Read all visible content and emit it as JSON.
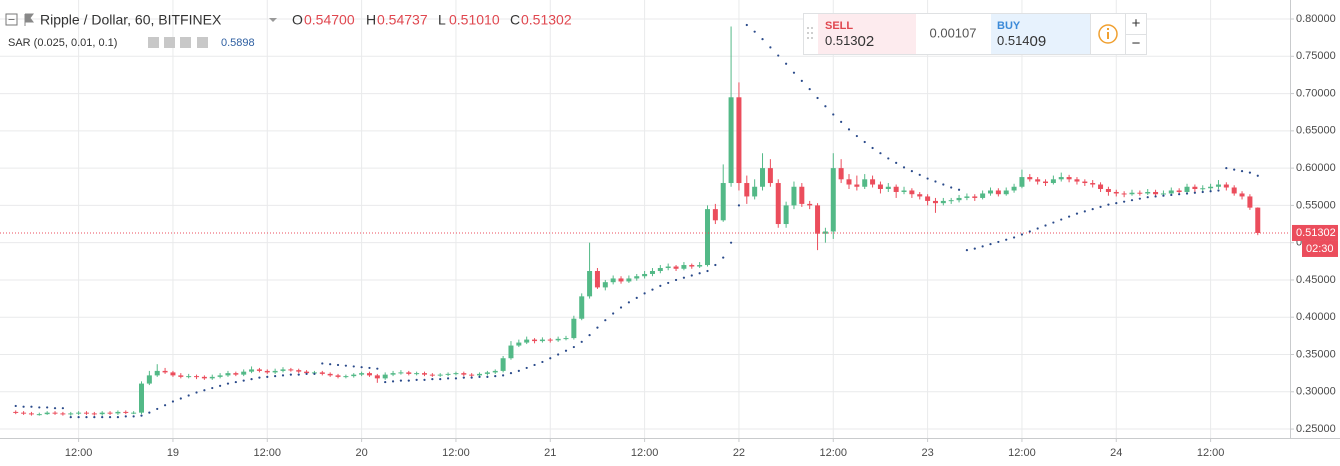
{
  "legend": {
    "symbol": "Ripple / Dollar, 60, BITFINEX",
    "o_key": "O",
    "o": "0.54700",
    "h_key": "H",
    "h": "0.54737",
    "l_key": "L",
    "l": "0.51010",
    "c_key": "C",
    "c": "0.51302",
    "indicator": "SAR (0.025, 0.01, 0.1)"
  },
  "trade": {
    "sell_label": "SELL",
    "sell_small": "0.513",
    "sell_big": "02",
    "spread": "0.00107",
    "buy_label": "BUY",
    "buy_small": "0.514",
    "buy_big": "09",
    "plus": "+",
    "minus": "−"
  },
  "chart_data": {
    "type": "candlestick",
    "up_color": "#53b987",
    "down_color": "#eb4d5c",
    "sar_color": "#2a4a8a",
    "grid": true,
    "xlim": [
      2,
      166.1
    ],
    "ylim": [
      0.238,
      0.8255
    ],
    "xticks": [
      {
        "value": 12,
        "label": "12:00"
      },
      {
        "value": 24,
        "label": "19"
      },
      {
        "value": 36,
        "label": "12:00"
      },
      {
        "value": 48,
        "label": "20"
      },
      {
        "value": 60,
        "label": "12:00"
      },
      {
        "value": 72,
        "label": "21"
      },
      {
        "value": 84,
        "label": "12:00"
      },
      {
        "value": 96,
        "label": "22"
      },
      {
        "value": 108,
        "label": "12:00"
      },
      {
        "value": 120,
        "label": "23"
      },
      {
        "value": 132,
        "label": "12:00"
      },
      {
        "value": 144,
        "label": "24"
      },
      {
        "value": 156,
        "label": "12:00"
      }
    ],
    "yticks": [
      {
        "value": 0.25,
        "label": "0.25000"
      },
      {
        "value": 0.3,
        "label": "0.30000"
      },
      {
        "value": 0.35,
        "label": "0.35000"
      },
      {
        "value": 0.4,
        "label": "0.40000"
      },
      {
        "value": 0.45,
        "label": "0.45000"
      },
      {
        "value": 0.5,
        "label": "0.50000"
      },
      {
        "value": 0.55,
        "label": "0.55000"
      },
      {
        "value": 0.6,
        "label": "0.60000"
      },
      {
        "value": 0.65,
        "label": "0.65000"
      },
      {
        "value": 0.7,
        "label": "0.70000"
      },
      {
        "value": 0.75,
        "label": "0.75000"
      },
      {
        "value": 0.8,
        "label": "0.80000"
      }
    ],
    "last_price": 0.51302,
    "countdown": "02:30",
    "x": [
      4,
      5,
      6,
      7,
      8,
      9,
      10,
      11,
      12,
      13,
      14,
      15,
      16,
      17,
      18,
      19,
      20,
      21,
      22,
      23,
      24,
      25,
      26,
      27,
      28,
      29,
      30,
      31,
      32,
      33,
      34,
      35,
      36,
      37,
      38,
      39,
      40,
      41,
      42,
      43,
      44,
      45,
      46,
      47,
      48,
      49,
      50,
      51,
      52,
      53,
      54,
      55,
      56,
      57,
      58,
      59,
      60,
      61,
      62,
      63,
      64,
      65,
      66,
      67,
      68,
      69,
      70,
      71,
      72,
      73,
      74,
      75,
      76,
      77,
      78,
      79,
      80,
      81,
      82,
      83,
      84,
      85,
      86,
      87,
      88,
      89,
      90,
      91,
      92,
      93,
      94,
      95,
      96,
      97,
      98,
      99,
      100,
      101,
      102,
      103,
      104,
      105,
      106,
      107,
      108,
      109,
      110,
      111,
      112,
      113,
      114,
      115,
      116,
      117,
      118,
      119,
      120,
      121,
      122,
      123,
      124,
      125,
      126,
      127,
      128,
      129,
      130,
      131,
      132,
      133,
      134,
      135,
      136,
      137,
      138,
      139,
      140,
      141,
      142,
      143,
      144,
      145,
      146,
      147,
      148,
      149,
      150,
      151,
      152,
      153,
      154,
      155,
      156,
      157,
      158,
      159,
      160,
      161,
      162
    ],
    "candles": [
      [
        0.273,
        0.275,
        0.27,
        0.272
      ],
      [
        0.272,
        0.274,
        0.269,
        0.271
      ],
      [
        0.271,
        0.273,
        0.268,
        0.27
      ],
      [
        0.27,
        0.272,
        0.268,
        0.27
      ],
      [
        0.27,
        0.274,
        0.269,
        0.272
      ],
      [
        0.272,
        0.274,
        0.269,
        0.271
      ],
      [
        0.271,
        0.273,
        0.268,
        0.27
      ],
      [
        0.27,
        0.273,
        0.268,
        0.271
      ],
      [
        0.271,
        0.274,
        0.269,
        0.272
      ],
      [
        0.272,
        0.274,
        0.269,
        0.271
      ],
      [
        0.271,
        0.273,
        0.268,
        0.27
      ],
      [
        0.27,
        0.274,
        0.268,
        0.272
      ],
      [
        0.272,
        0.274,
        0.269,
        0.271
      ],
      [
        0.271,
        0.275,
        0.269,
        0.273
      ],
      [
        0.273,
        0.275,
        0.27,
        0.272
      ],
      [
        0.272,
        0.274,
        0.27,
        0.272
      ],
      [
        0.272,
        0.314,
        0.27,
        0.311
      ],
      [
        0.311,
        0.328,
        0.309,
        0.322
      ],
      [
        0.322,
        0.337,
        0.32,
        0.328
      ],
      [
        0.328,
        0.332,
        0.324,
        0.326
      ],
      [
        0.326,
        0.328,
        0.32,
        0.322
      ],
      [
        0.322,
        0.325,
        0.318,
        0.32
      ],
      [
        0.32,
        0.324,
        0.318,
        0.321
      ],
      [
        0.321,
        0.323,
        0.317,
        0.32
      ],
      [
        0.32,
        0.322,
        0.316,
        0.318
      ],
      [
        0.318,
        0.323,
        0.316,
        0.32
      ],
      [
        0.32,
        0.325,
        0.318,
        0.322
      ],
      [
        0.322,
        0.328,
        0.32,
        0.325
      ],
      [
        0.325,
        0.327,
        0.321,
        0.323
      ],
      [
        0.323,
        0.33,
        0.321,
        0.327
      ],
      [
        0.327,
        0.334,
        0.325,
        0.33
      ],
      [
        0.33,
        0.332,
        0.326,
        0.328
      ],
      [
        0.328,
        0.33,
        0.324,
        0.326
      ],
      [
        0.326,
        0.331,
        0.324,
        0.328
      ],
      [
        0.328,
        0.333,
        0.326,
        0.33
      ],
      [
        0.33,
        0.332,
        0.327,
        0.329
      ],
      [
        0.329,
        0.331,
        0.325,
        0.327
      ],
      [
        0.327,
        0.329,
        0.323,
        0.325
      ],
      [
        0.325,
        0.328,
        0.323,
        0.326
      ],
      [
        0.326,
        0.328,
        0.322,
        0.324
      ],
      [
        0.324,
        0.326,
        0.32,
        0.322
      ],
      [
        0.322,
        0.324,
        0.318,
        0.32
      ],
      [
        0.32,
        0.323,
        0.318,
        0.321
      ],
      [
        0.321,
        0.325,
        0.319,
        0.323
      ],
      [
        0.323,
        0.327,
        0.321,
        0.325
      ],
      [
        0.325,
        0.327,
        0.32,
        0.322
      ],
      [
        0.322,
        0.324,
        0.312,
        0.318
      ],
      [
        0.318,
        0.326,
        0.316,
        0.323
      ],
      [
        0.323,
        0.328,
        0.321,
        0.325
      ],
      [
        0.325,
        0.329,
        0.323,
        0.326
      ],
      [
        0.326,
        0.328,
        0.322,
        0.324
      ],
      [
        0.324,
        0.327,
        0.322,
        0.325
      ],
      [
        0.325,
        0.327,
        0.321,
        0.323
      ],
      [
        0.323,
        0.325,
        0.32,
        0.322
      ],
      [
        0.322,
        0.325,
        0.32,
        0.323
      ],
      [
        0.323,
        0.326,
        0.321,
        0.324
      ],
      [
        0.324,
        0.327,
        0.322,
        0.325
      ],
      [
        0.325,
        0.327,
        0.321,
        0.323
      ],
      [
        0.323,
        0.325,
        0.32,
        0.322
      ],
      [
        0.322,
        0.326,
        0.32,
        0.324
      ],
      [
        0.324,
        0.328,
        0.322,
        0.326
      ],
      [
        0.326,
        0.33,
        0.324,
        0.328
      ],
      [
        0.328,
        0.348,
        0.326,
        0.345
      ],
      [
        0.345,
        0.368,
        0.343,
        0.362
      ],
      [
        0.362,
        0.37,
        0.36,
        0.366
      ],
      [
        0.366,
        0.374,
        0.364,
        0.37
      ],
      [
        0.37,
        0.372,
        0.365,
        0.368
      ],
      [
        0.368,
        0.373,
        0.366,
        0.37
      ],
      [
        0.37,
        0.372,
        0.366,
        0.369
      ],
      [
        0.369,
        0.374,
        0.367,
        0.371
      ],
      [
        0.371,
        0.375,
        0.369,
        0.372
      ],
      [
        0.372,
        0.402,
        0.37,
        0.398
      ],
      [
        0.398,
        0.432,
        0.396,
        0.428
      ],
      [
        0.428,
        0.5,
        0.425,
        0.462
      ],
      [
        0.462,
        0.466,
        0.438,
        0.44
      ],
      [
        0.44,
        0.45,
        0.436,
        0.447
      ],
      [
        0.447,
        0.456,
        0.444,
        0.452
      ],
      [
        0.452,
        0.455,
        0.445,
        0.448
      ],
      [
        0.448,
        0.456,
        0.446,
        0.452
      ],
      [
        0.452,
        0.458,
        0.449,
        0.455
      ],
      [
        0.455,
        0.462,
        0.452,
        0.458
      ],
      [
        0.458,
        0.466,
        0.455,
        0.462
      ],
      [
        0.462,
        0.47,
        0.459,
        0.466
      ],
      [
        0.466,
        0.472,
        0.463,
        0.468
      ],
      [
        0.468,
        0.47,
        0.462,
        0.465
      ],
      [
        0.465,
        0.474,
        0.463,
        0.47
      ],
      [
        0.47,
        0.472,
        0.465,
        0.468
      ],
      [
        0.468,
        0.474,
        0.466,
        0.47
      ],
      [
        0.47,
        0.55,
        0.468,
        0.545
      ],
      [
        0.545,
        0.552,
        0.525,
        0.53
      ],
      [
        0.53,
        0.605,
        0.528,
        0.58
      ],
      [
        0.58,
        0.79,
        0.575,
        0.695
      ],
      [
        0.695,
        0.715,
        0.57,
        0.58
      ],
      [
        0.58,
        0.59,
        0.552,
        0.562
      ],
      [
        0.562,
        0.585,
        0.558,
        0.575
      ],
      [
        0.575,
        0.62,
        0.57,
        0.6
      ],
      [
        0.6,
        0.612,
        0.575,
        0.58
      ],
      [
        0.58,
        0.585,
        0.52,
        0.525
      ],
      [
        0.525,
        0.555,
        0.52,
        0.55
      ],
      [
        0.55,
        0.582,
        0.545,
        0.575
      ],
      [
        0.575,
        0.58,
        0.548,
        0.552
      ],
      [
        0.552,
        0.556,
        0.545,
        0.55
      ],
      [
        0.55,
        0.553,
        0.49,
        0.512
      ],
      [
        0.512,
        0.52,
        0.5,
        0.515
      ],
      [
        0.515,
        0.62,
        0.505,
        0.6
      ],
      [
        0.6,
        0.612,
        0.58,
        0.585
      ],
      [
        0.585,
        0.592,
        0.572,
        0.578
      ],
      [
        0.578,
        0.59,
        0.57,
        0.575
      ],
      [
        0.575,
        0.592,
        0.572,
        0.585
      ],
      [
        0.585,
        0.59,
        0.574,
        0.578
      ],
      [
        0.578,
        0.582,
        0.566,
        0.572
      ],
      [
        0.572,
        0.58,
        0.568,
        0.575
      ],
      [
        0.575,
        0.578,
        0.56,
        0.568
      ],
      [
        0.568,
        0.575,
        0.565,
        0.57
      ],
      [
        0.57,
        0.573,
        0.56,
        0.565
      ],
      [
        0.565,
        0.568,
        0.558,
        0.562
      ],
      [
        0.562,
        0.565,
        0.55,
        0.556
      ],
      [
        0.556,
        0.56,
        0.54,
        0.553
      ],
      [
        0.553,
        0.56,
        0.55,
        0.556
      ],
      [
        0.556,
        0.56,
        0.552,
        0.557
      ],
      [
        0.557,
        0.564,
        0.554,
        0.56
      ],
      [
        0.56,
        0.566,
        0.557,
        0.562
      ],
      [
        0.562,
        0.565,
        0.556,
        0.56
      ],
      [
        0.56,
        0.57,
        0.558,
        0.566
      ],
      [
        0.566,
        0.574,
        0.563,
        0.57
      ],
      [
        0.57,
        0.573,
        0.562,
        0.565
      ],
      [
        0.565,
        0.574,
        0.563,
        0.57
      ],
      [
        0.57,
        0.579,
        0.567,
        0.575
      ],
      [
        0.575,
        0.598,
        0.573,
        0.588
      ],
      [
        0.588,
        0.592,
        0.582,
        0.585
      ],
      [
        0.585,
        0.588,
        0.578,
        0.582
      ],
      [
        0.582,
        0.585,
        0.576,
        0.58
      ],
      [
        0.58,
        0.59,
        0.578,
        0.585
      ],
      [
        0.585,
        0.594,
        0.582,
        0.588
      ],
      [
        0.588,
        0.591,
        0.581,
        0.585
      ],
      [
        0.585,
        0.588,
        0.578,
        0.582
      ],
      [
        0.582,
        0.585,
        0.576,
        0.58
      ],
      [
        0.58,
        0.584,
        0.574,
        0.578
      ],
      [
        0.578,
        0.581,
        0.568,
        0.572
      ],
      [
        0.572,
        0.575,
        0.563,
        0.568
      ],
      [
        0.568,
        0.571,
        0.562,
        0.566
      ],
      [
        0.566,
        0.569,
        0.561,
        0.565
      ],
      [
        0.565,
        0.571,
        0.563,
        0.567
      ],
      [
        0.567,
        0.57,
        0.563,
        0.566
      ],
      [
        0.566,
        0.572,
        0.564,
        0.568
      ],
      [
        0.568,
        0.571,
        0.561,
        0.565
      ],
      [
        0.565,
        0.57,
        0.562,
        0.566
      ],
      [
        0.566,
        0.574,
        0.564,
        0.57
      ],
      [
        0.57,
        0.573,
        0.564,
        0.568
      ],
      [
        0.568,
        0.579,
        0.566,
        0.575
      ],
      [
        0.575,
        0.578,
        0.568,
        0.572
      ],
      [
        0.572,
        0.577,
        0.569,
        0.573
      ],
      [
        0.573,
        0.579,
        0.57,
        0.575
      ],
      [
        0.575,
        0.584,
        0.572,
        0.578
      ],
      [
        0.578,
        0.581,
        0.57,
        0.574
      ],
      [
        0.574,
        0.577,
        0.563,
        0.566
      ],
      [
        0.566,
        0.569,
        0.558,
        0.562
      ],
      [
        0.562,
        0.565,
        0.544,
        0.547
      ],
      [
        0.547,
        0.54737,
        0.5101,
        0.51302
      ]
    ],
    "sar": [
      0.281,
      0.28,
      0.28,
      0.279,
      0.279,
      0.278,
      0.278,
      0.266,
      0.266,
      0.266,
      0.266,
      0.266,
      0.266,
      0.266,
      0.267,
      0.267,
      0.268,
      0.272,
      0.277,
      0.282,
      0.287,
      0.291,
      0.295,
      0.299,
      0.302,
      0.305,
      0.308,
      0.311,
      0.313,
      0.315,
      0.317,
      0.319,
      0.32,
      0.321,
      0.322,
      0.323,
      0.323,
      0.324,
      0.324,
      0.338,
      0.337,
      0.336,
      0.335,
      0.334,
      0.333,
      0.332,
      0.331,
      0.313,
      0.314,
      0.315,
      0.315,
      0.316,
      0.316,
      0.317,
      0.317,
      0.318,
      0.318,
      0.319,
      0.319,
      0.32,
      0.32,
      0.321,
      0.322,
      0.325,
      0.328,
      0.332,
      0.336,
      0.34,
      0.345,
      0.35,
      0.355,
      0.36,
      0.367,
      0.376,
      0.386,
      0.396,
      0.405,
      0.413,
      0.42,
      0.426,
      0.432,
      0.437,
      0.442,
      0.446,
      0.45,
      0.453,
      0.456,
      0.459,
      0.462,
      0.47,
      0.48,
      0.5,
      0.55,
      0.792,
      0.783,
      0.773,
      0.762,
      0.751,
      0.74,
      0.728,
      0.717,
      0.706,
      0.694,
      0.683,
      0.672,
      0.662,
      0.652,
      0.643,
      0.635,
      0.627,
      0.62,
      0.613,
      0.607,
      0.601,
      0.596,
      0.591,
      0.586,
      0.582,
      0.578,
      0.574,
      0.571,
      0.49,
      0.492,
      0.495,
      0.498,
      0.501,
      0.504,
      0.507,
      0.511,
      0.515,
      0.519,
      0.523,
      0.527,
      0.531,
      0.535,
      0.539,
      0.542,
      0.545,
      0.548,
      0.551,
      0.553,
      0.555,
      0.557,
      0.559,
      0.561,
      0.562,
      0.563,
      0.564,
      0.565,
      0.566,
      0.567,
      0.568,
      0.569,
      0.57,
      0.6,
      0.598,
      0.596,
      0.594,
      0.5898
    ]
  }
}
